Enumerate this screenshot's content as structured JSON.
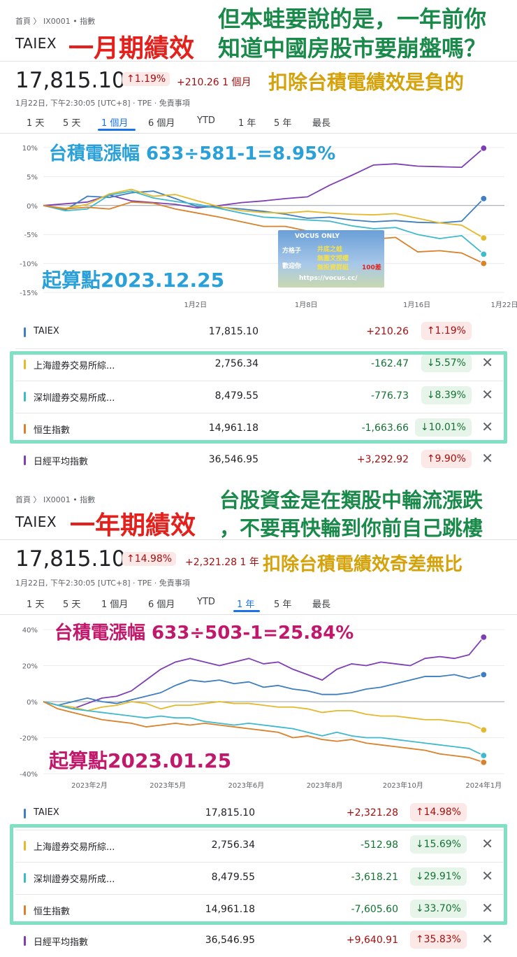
{
  "colors": {
    "purple": "#7e3fb4",
    "blue": "#3f7fbf",
    "yellow": "#e5b92d",
    "cyan": "#3fb9cc",
    "orange": "#d9822b",
    "up": "#a50e0e",
    "down": "#137333",
    "accent": "#1a73e8",
    "box": "#7fe0c3"
  },
  "panels": [
    {
      "breadcrumb": "首頁 〉 IX0001 • 指數",
      "ticker": "TAIEX",
      "price": "17,815.10",
      "pct": "↑1.19%",
      "change": "+210.26 1 個月",
      "meta": "1月22日, 下午2:30:05 [UTC+8] · TPE · 免責事項",
      "tabs": [
        "1 天",
        "5 天",
        "1 個月",
        "6 個月",
        "YTD",
        "1 年",
        "5 年",
        "最長"
      ],
      "selected_tab": "1 個月",
      "overlays": {
        "title": "一月期績效",
        "topright": "但本蛙要說的是，一年前你",
        "topright2": "知道中國房股市要崩盤嗎？",
        "note": "扣除台積電績效是負的",
        "tsmc": "台積電漲幅 633÷581-1=8.95%",
        "start": "起算點2023.12.25"
      },
      "watermark": {
        "l1": "VOCUS ONLY",
        "l2": "方格子",
        "l3": "井底之蛙",
        "l4": "無圖文授權",
        "l5": "歡迎你",
        "l6": "無投資群組",
        "l7": "100差",
        "l8": "https://vocus.cc/"
      },
      "rows": [
        {
          "name": "TAIEX",
          "price": "17,815.10",
          "abs": "+210.26",
          "pct": "↑1.19%",
          "dir": "up",
          "color": "#3f7fbf",
          "x": false
        },
        {
          "name": "上海證券交易所綜...",
          "price": "2,756.34",
          "abs": "-162.47",
          "pct": "↓5.57%",
          "dir": "down",
          "color": "#e5b92d",
          "x": true
        },
        {
          "name": "深圳證券交易所成...",
          "price": "8,479.55",
          "abs": "-776.73",
          "pct": "↓8.39%",
          "dir": "down",
          "color": "#3fb9cc",
          "x": true
        },
        {
          "name": "恒生指數",
          "price": "14,961.18",
          "abs": "-1,663.66",
          "pct": "↓10.01%",
          "dir": "down",
          "color": "#d9822b",
          "x": true
        },
        {
          "name": "日經平均指數",
          "price": "36,546.95",
          "abs": "+3,292.92",
          "pct": "↑9.90%",
          "dir": "up",
          "color": "#7e3fb4",
          "x": true
        }
      ]
    },
    {
      "breadcrumb": "首頁 〉 IX0001 • 指數",
      "ticker": "TAIEX",
      "price": "17,815.10",
      "pct": "↑14.98%",
      "change": "+2,321.28 1 年",
      "meta": "1月22日, 下午2:30:05 [UTC+8] · TPE · 免責事項",
      "tabs": [
        "1 天",
        "5 天",
        "1 個月",
        "6 個月",
        "YTD",
        "1 年",
        "5 年",
        "最長"
      ],
      "selected_tab": "1 年",
      "overlays": {
        "title": "一年期績效",
        "topright": "台股資金是在類股中輪流漲跌",
        "topright2": "，不要再快輪到你前自己跳樓",
        "note": "扣除台積電績效奇差無比",
        "tsmc": "台積電漲幅 633÷503-1=25.84%",
        "start": "起算點2023.01.25"
      },
      "rows": [
        {
          "name": "TAIEX",
          "price": "17,815.10",
          "abs": "+2,321.28",
          "pct": "↑14.98%",
          "dir": "up",
          "color": "#3f7fbf",
          "x": false
        },
        {
          "name": "上海證券交易所綜...",
          "price": "2,756.34",
          "abs": "-512.98",
          "pct": "↓15.69%",
          "dir": "down",
          "color": "#e5b92d",
          "x": true
        },
        {
          "name": "深圳證券交易所成...",
          "price": "8,479.55",
          "abs": "-3,618.21",
          "pct": "↓29.91%",
          "dir": "down",
          "color": "#3fb9cc",
          "x": true
        },
        {
          "name": "恒生指數",
          "price": "14,961.18",
          "abs": "-7,605.60",
          "pct": "↓33.70%",
          "dir": "down",
          "color": "#d9822b",
          "x": true
        },
        {
          "name": "日經平均指數",
          "price": "36,546.95",
          "abs": "+9,640.91",
          "pct": "↑35.83%",
          "dir": "up",
          "color": "#7e3fb4",
          "x": true
        }
      ]
    }
  ],
  "chart_data": [
    {
      "type": "line",
      "ylim": [
        -15,
        10
      ],
      "yticks": [
        "10%",
        "5%",
        "0%",
        "-5%",
        "-10%",
        "-15%"
      ],
      "yvals": [
        10,
        5,
        0,
        -5,
        -10,
        -15
      ],
      "xticks": [
        "1月2日",
        "1月8日",
        "1月16日",
        "1月22日"
      ],
      "xtickpos": [
        0.33,
        0.57,
        0.81,
        1.0
      ],
      "series": [
        {
          "name": "日經平均指數",
          "color": "#7e3fb4",
          "values": [
            0,
            0.3,
            0.6,
            1.8,
            0.8,
            0.5,
            0.2,
            -0.4,
            0,
            0.5,
            0.8,
            1.2,
            1.5,
            3.5,
            5.2,
            7.0,
            7.2,
            6.8,
            6.7,
            6.6,
            9.9
          ]
        },
        {
          "name": "TAIEX",
          "color": "#3f7fbf",
          "values": [
            0,
            -0.8,
            1.6,
            1.4,
            2.2,
            2.5,
            1.2,
            -0.2,
            -0.3,
            -0.6,
            -1.0,
            -1.5,
            -2.2,
            -2.0,
            -2.5,
            -2.8,
            -2.6,
            -2.9,
            -3.0,
            -2.7,
            1.2
          ]
        },
        {
          "name": "上海證券交易所綜...",
          "color": "#e5b92d",
          "values": [
            0,
            -0.5,
            0.2,
            2.0,
            2.8,
            1.6,
            1.9,
            0.8,
            -0.2,
            -0.9,
            -1.2,
            -1.3,
            -1.0,
            -1.3,
            -1.5,
            -1.6,
            -1.4,
            -2.2,
            -3.0,
            -3.4,
            -5.6
          ]
        },
        {
          "name": "深圳證券交易所成...",
          "color": "#3fb9cc",
          "values": [
            0,
            -0.9,
            -0.6,
            1.8,
            2.5,
            1.3,
            0.7,
            0.2,
            -0.5,
            -1.3,
            -2.0,
            -2.2,
            -2.5,
            -2.7,
            -3.5,
            -4.0,
            -3.8,
            -5.0,
            -5.7,
            -5.2,
            -8.4
          ]
        },
        {
          "name": "恒生指數",
          "color": "#d9822b",
          "values": [
            0,
            -0.6,
            -0.3,
            -0.6,
            0.6,
            0.4,
            -0.6,
            -1.3,
            -2.0,
            -2.8,
            -3.6,
            -3.6,
            -4.4,
            -4.7,
            -5.3,
            -5.8,
            -5.5,
            -8.0,
            -7.8,
            -8.2,
            -10.0
          ]
        }
      ]
    },
    {
      "type": "line",
      "ylim": [
        -40,
        40
      ],
      "yticks": [
        "40%",
        "20%",
        "0%",
        "-20%",
        "-40%"
      ],
      "yvals": [
        40,
        20,
        0,
        -20,
        -40
      ],
      "xticks": [
        "2023年2月",
        "2023年5月",
        "2023年6月",
        "2023年8月",
        "2023年10月",
        "2024年1月"
      ],
      "xtickpos": [
        0.1,
        0.27,
        0.44,
        0.61,
        0.78,
        0.955
      ],
      "series": [
        {
          "name": "日經平均指數",
          "color": "#7e3fb4",
          "values": [
            0,
            -2,
            -4,
            -1,
            2,
            3,
            6,
            12,
            18,
            22,
            24,
            22,
            20,
            22,
            24,
            21,
            22,
            18,
            15,
            12,
            18,
            21,
            20,
            22,
            21,
            20,
            24,
            25,
            24,
            26,
            35.8
          ]
        },
        {
          "name": "TAIEX",
          "color": "#3f7fbf",
          "values": [
            0,
            -2,
            0,
            2,
            0,
            -1,
            1,
            3,
            5,
            9,
            12,
            11,
            12,
            10,
            11,
            8,
            9,
            7,
            6,
            4,
            4,
            5,
            7,
            8,
            10,
            12,
            14,
            14,
            15,
            13,
            15
          ]
        },
        {
          "name": "上海證券交易所綜...",
          "color": "#e5b92d",
          "values": [
            0,
            -2,
            -3,
            -5,
            -3,
            -2,
            0,
            -1,
            -4,
            -2,
            -2,
            -1,
            0,
            -1,
            -1,
            -2,
            -3,
            -3,
            -4,
            -6,
            -5,
            -5,
            -7,
            -8,
            -8,
            -9,
            -10,
            -10,
            -11,
            -12,
            -15.7
          ]
        },
        {
          "name": "深圳證券交易所成...",
          "color": "#3fb9cc",
          "values": [
            0,
            -2,
            -4,
            -5,
            -6,
            -7,
            -8,
            -9,
            -8,
            -9,
            -9,
            -11,
            -12,
            -13,
            -12,
            -13,
            -14,
            -15,
            -17,
            -19,
            -17,
            -19,
            -20,
            -20,
            -21,
            -22,
            -23,
            -24,
            -25,
            -26,
            -29.9
          ]
        },
        {
          "name": "恒生指數",
          "color": "#d9822b",
          "values": [
            0,
            -4,
            -6,
            -8,
            -10,
            -11,
            -12,
            -14,
            -13,
            -12,
            -13,
            -12,
            -13,
            -14,
            -15,
            -16,
            -17,
            -20,
            -19,
            -21,
            -22,
            -21,
            -23,
            -24,
            -25,
            -26,
            -27,
            -29,
            -30,
            -31,
            -33.7
          ]
        }
      ]
    }
  ]
}
